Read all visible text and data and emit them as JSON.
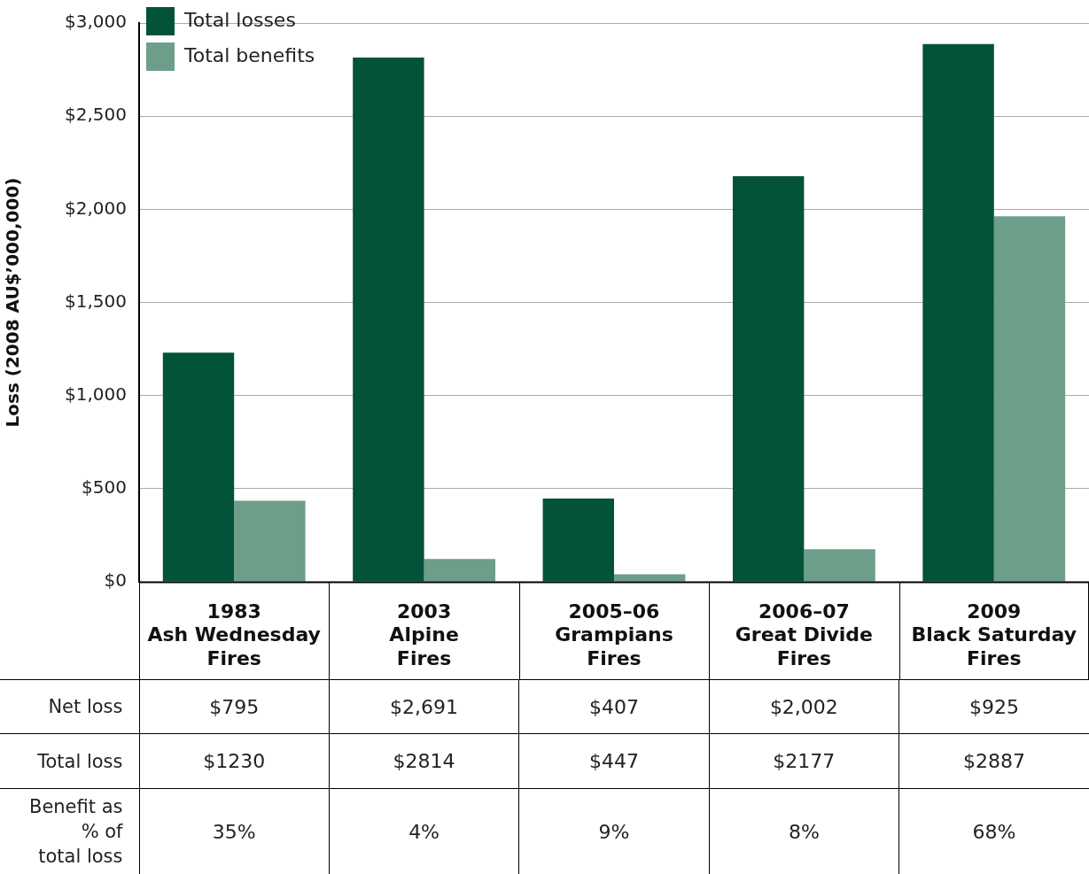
{
  "chart_data": {
    "type": "bar",
    "ylabel": "Loss (2008 AU$’000,000)",
    "categories": [
      "1983\nAsh Wednesday\nFires",
      "2003\nAlpine\nFires",
      "2005–06\nGrampians\nFires",
      "2006–07\nGreat Divide\nFires",
      "2009\nBlack Saturday\nFires"
    ],
    "series": [
      {
        "name": "Total losses",
        "color": "#03523a",
        "values": [
          1230,
          2814,
          447,
          2177,
          2887
        ]
      },
      {
        "name": "Total benefits",
        "color": "#6d9e8a",
        "values": [
          435,
          123,
          40,
          175,
          1962
        ]
      }
    ],
    "ylim": [
      0,
      3000
    ],
    "yticks": [
      {
        "value": 0,
        "label": "$0"
      },
      {
        "value": 500,
        "label": "$500"
      },
      {
        "value": 1000,
        "label": "$1,000"
      },
      {
        "value": 1500,
        "label": "$1,500"
      },
      {
        "value": 2000,
        "label": "$2,000"
      },
      {
        "value": 2500,
        "label": "$2,500"
      },
      {
        "value": 3000,
        "label": "$3,000"
      }
    ],
    "grid": "y",
    "legend": "top left",
    "annotations": [
      "Net loss",
      "$795",
      "$2,691",
      "$407",
      "$2,002",
      "$925",
      "Total loss",
      "$1230",
      "$2814",
      "$447",
      "$2177",
      "$2887",
      "Benefit as\n% of\ntotal loss",
      "35%",
      "4%",
      "9%",
      "8%",
      "68%"
    ]
  }
}
